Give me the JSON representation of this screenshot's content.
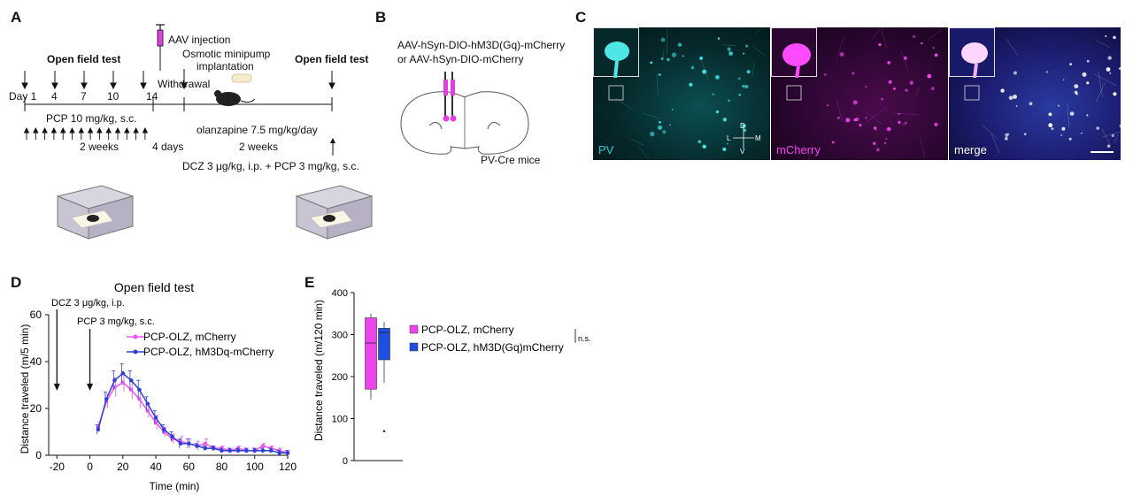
{
  "panels": {
    "a": "A",
    "b": "B",
    "c": "C",
    "d": "D",
    "e": "E"
  },
  "panel_a": {
    "open_field_1": "Open field test",
    "open_field_2": "Open field test",
    "aav": "AAV injection",
    "osmotic": "Osmotic minipump",
    "implantation": "implantation",
    "withdrawal": "Withdrawal",
    "days": [
      "Day 1",
      "4",
      "7",
      "10",
      "14"
    ],
    "pcp_dose": "PCP 10 mg/kg, s.c.",
    "olanzapine": "olanzapine 7.5 mg/kg/day",
    "two_weeks_1": "2 weeks",
    "four_days": "4 days",
    "two_weeks_2": "2 weeks",
    "dcz": "DCZ 3 μg/kg, i.p. + PCP 3 mg/kg, s.c."
  },
  "panel_b": {
    "line1": "AAV-hSyn-DIO-hM3D(Gq)-mCherry",
    "line2": "or AAV-hSyn-DIO-mCherry",
    "mice": "PV-Cre mice"
  },
  "panel_c": {
    "labels": [
      "PV",
      "mCherry",
      "merge"
    ],
    "compass": {
      "d": "D",
      "v": "V",
      "l": "L",
      "m": "M"
    },
    "colors": {
      "pv": "#22d3d3",
      "mcherry": "#e020e0",
      "merge": "#3a2a9a"
    }
  },
  "chart_data": [
    {
      "type": "line",
      "title": "Open field test",
      "xlabel": "Time (min)",
      "ylabel": "Distance traveled (m/5 min)",
      "xlim": [
        -25,
        120
      ],
      "ylim": [
        0,
        60
      ],
      "xticks": [
        -20,
        0,
        20,
        40,
        60,
        80,
        100,
        120
      ],
      "yticks": [
        0,
        20,
        40,
        60
      ],
      "annotations": [
        "DCZ 3 μg/kg, i.p.",
        "PCP 3 mg/kg, s.c."
      ],
      "legend": "top-right",
      "x": [
        5,
        10,
        15,
        20,
        25,
        30,
        35,
        40,
        45,
        50,
        55,
        60,
        65,
        70,
        75,
        80,
        85,
        90,
        95,
        100,
        105,
        110,
        115,
        120
      ],
      "series": [
        {
          "name": "PCP-OLZ, mCherry",
          "color": "#ee55ee",
          "values": [
            12,
            23,
            29,
            31,
            28,
            24,
            19,
            14,
            10,
            7,
            6,
            5,
            4,
            5,
            3,
            3,
            2,
            3,
            2,
            2,
            4,
            3,
            2,
            1
          ],
          "error": [
            2,
            3,
            4,
            4,
            4,
            4,
            3,
            3,
            2,
            2,
            2,
            2,
            2,
            2,
            1,
            1,
            1,
            1,
            1,
            1,
            1,
            1,
            1,
            1
          ]
        },
        {
          "name": "PCP-OLZ, hM3Dq-mCherry",
          "color": "#2b3fd6",
          "values": [
            11,
            24,
            32,
            35,
            32,
            28,
            22,
            16,
            11,
            8,
            5,
            5,
            4,
            3,
            3,
            2,
            2,
            2,
            2,
            2,
            2,
            2,
            1,
            1
          ],
          "error": [
            2,
            3,
            4,
            4,
            4,
            4,
            3,
            3,
            2,
            2,
            2,
            2,
            1,
            1,
            1,
            1,
            1,
            1,
            1,
            1,
            1,
            1,
            1,
            1
          ]
        }
      ]
    },
    {
      "type": "box",
      "ylabel": "Distance traveled (m/120 min)",
      "ylim": [
        0,
        400
      ],
      "yticks": [
        0,
        100,
        200,
        300,
        400
      ],
      "significance": "n.s.",
      "legend": "right",
      "series": [
        {
          "name": "PCP-OLZ, mCherry",
          "color": "#ee44ee",
          "min": 145,
          "q1": 170,
          "median": 280,
          "q3": 340,
          "max": 350,
          "outliers": []
        },
        {
          "name": "PCP-OLZ, hM3D(Gq)mCherry",
          "color": "#1f4ee0",
          "min": 185,
          "q1": 240,
          "median": 305,
          "q3": 315,
          "max": 330,
          "outliers": [
            70
          ]
        }
      ]
    }
  ]
}
